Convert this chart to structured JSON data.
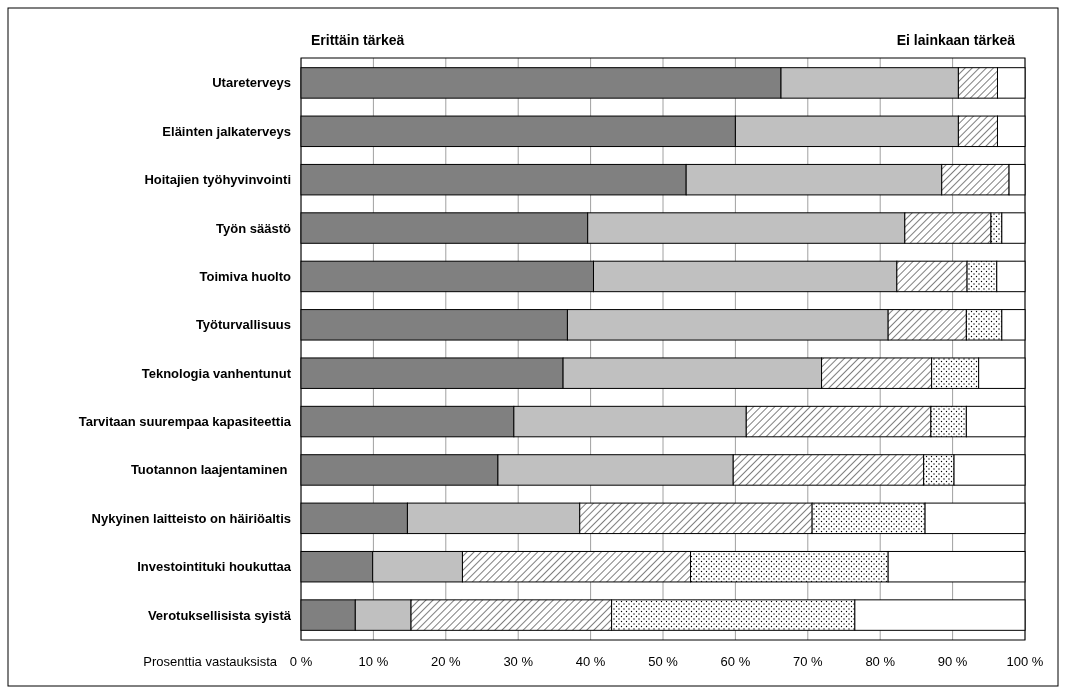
{
  "chart_data": {
    "type": "bar",
    "orientation": "horizontal",
    "stacked": true,
    "categories": [
      "Utareterveys",
      "Eläinten jalkaterveys",
      "Hoitajien työhyvinvointi",
      "Työn säästö",
      "Toimiva huolto",
      "Työturvallisuus",
      "Teknologia vanhentunut",
      "Tarvitaan suurempaa kapasiteettia",
      "Tuotannon laajentaminen ",
      "Nykyinen laitteisto on häiriöaltis",
      "Investointituki houkuttaa",
      "Verotuksellisista syistä"
    ],
    "series": [
      {
        "color": "#808080",
        "values": [
          66.3,
          60.0,
          53.2,
          39.6,
          40.4,
          36.8,
          36.2,
          29.4,
          27.2,
          14.7,
          9.9,
          7.5
        ]
      },
      {
        "color": "#c0c0c0",
        "values": [
          24.5,
          30.8,
          35.3,
          43.8,
          41.9,
          44.3,
          35.7,
          32.1,
          32.5,
          23.8,
          12.4,
          7.7
        ]
      },
      {
        "color": "#000000",
        "values": [
          5.4,
          5.4,
          9.3,
          11.9,
          9.7,
          10.8,
          15.2,
          25.5,
          26.3,
          32.1,
          31.5,
          27.7
        ]
      },
      {
        "color": "#000000",
        "values": [
          0,
          0,
          0,
          1.5,
          4.1,
          4.9,
          6.5,
          4.9,
          4.2,
          15.6,
          27.3,
          33.6
        ]
      },
      {
        "color": "#ffffff",
        "values": [
          3.8,
          3.8,
          2.2,
          3.2,
          3.9,
          3.2,
          6.4,
          8.1,
          9.8,
          13.8,
          18.9,
          23.5
        ]
      }
    ],
    "xlim": [
      0,
      100
    ],
    "xticks": [
      {
        "value": 0,
        "label": "0 %"
      },
      {
        "value": 10,
        "label": "10 %"
      },
      {
        "value": 20,
        "label": "20 %"
      },
      {
        "value": 30,
        "label": "30 %"
      },
      {
        "value": 40,
        "label": "40 %"
      },
      {
        "value": 50,
        "label": "50 %"
      },
      {
        "value": 60,
        "label": "60 %"
      },
      {
        "value": 70,
        "label": "70 %"
      },
      {
        "value": 80,
        "label": "80 %"
      },
      {
        "value": 90,
        "label": "90 %"
      },
      {
        "value": 100,
        "label": "100 %"
      }
    ],
    "xlabel": "Prosenttia vastauksista",
    "annotations": [
      "Erittäin tärkeä",
      "Ei lainkaan tärkeä"
    ],
    "grid": "x"
  }
}
